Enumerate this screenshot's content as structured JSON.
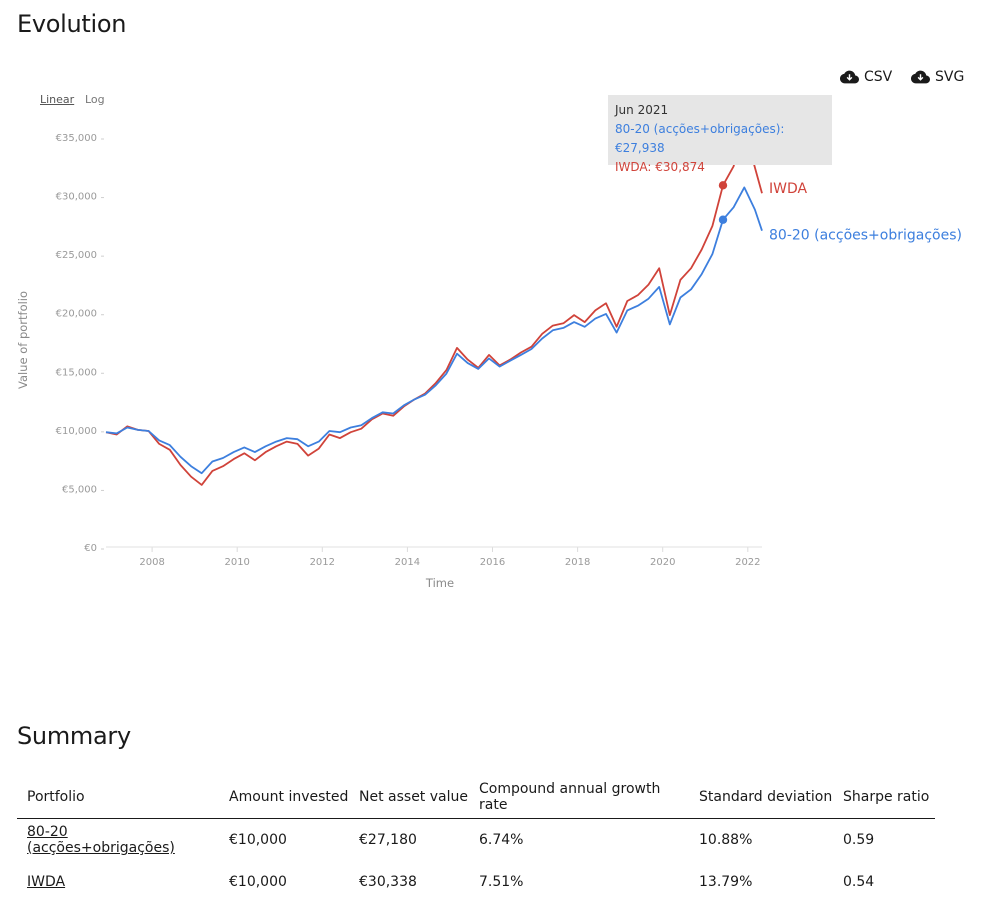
{
  "evolution": {
    "title": "Evolution",
    "downloads": {
      "csv_label": "CSV",
      "svg_label": "SVG"
    },
    "scale": {
      "linear_label": "Linear",
      "log_label": "Log",
      "selected": "Linear"
    }
  },
  "tooltip": {
    "date": "Jun 2021",
    "line1": "80-20 (acções+obrigações): €27,938",
    "line2": "IWDA: €30,874"
  },
  "chart_data": {
    "type": "line",
    "xlabel": "Time",
    "ylabel": "Value of portfolio",
    "x_ticks": [
      "2008",
      "2010",
      "2012",
      "2014",
      "2016",
      "2018",
      "2020",
      "2022"
    ],
    "y_tick_values": [
      0,
      5000,
      10000,
      15000,
      20000,
      25000,
      30000,
      35000
    ],
    "y_ticks": [
      "€0",
      "€5,000",
      "€10,000",
      "€15,000",
      "€20,000",
      "€25,000",
      "€30,000",
      "€35,000"
    ],
    "xlim": [
      "2006-12",
      "2022-05"
    ],
    "ylim": [
      0,
      35000
    ],
    "x": [
      "2006-12",
      "2007-03",
      "2007-06",
      "2007-09",
      "2007-12",
      "2008-03",
      "2008-06",
      "2008-09",
      "2008-12",
      "2009-03",
      "2009-06",
      "2009-09",
      "2009-12",
      "2010-03",
      "2010-06",
      "2010-09",
      "2010-12",
      "2011-03",
      "2011-06",
      "2011-09",
      "2011-12",
      "2012-03",
      "2012-06",
      "2012-09",
      "2012-12",
      "2013-03",
      "2013-06",
      "2013-09",
      "2013-12",
      "2014-03",
      "2014-06",
      "2014-09",
      "2014-12",
      "2015-03",
      "2015-06",
      "2015-09",
      "2015-12",
      "2016-03",
      "2016-06",
      "2016-09",
      "2016-12",
      "2017-03",
      "2017-06",
      "2017-09",
      "2017-12",
      "2018-03",
      "2018-06",
      "2018-09",
      "2018-12",
      "2019-03",
      "2019-06",
      "2019-09",
      "2019-12",
      "2020-03",
      "2020-06",
      "2020-09",
      "2020-12",
      "2021-03",
      "2021-06",
      "2021-09",
      "2021-12",
      "2022-03",
      "2022-05"
    ],
    "series": [
      {
        "name": "IWDA",
        "color": "#d0433a",
        "values": [
          9800,
          9600,
          10300,
          10000,
          9900,
          8800,
          8300,
          7000,
          6000,
          5300,
          6500,
          6900,
          7500,
          8000,
          7400,
          8100,
          8600,
          9000,
          8800,
          7800,
          8400,
          9600,
          9300,
          9800,
          10100,
          10900,
          11400,
          11200,
          12000,
          12600,
          13100,
          14000,
          15100,
          17000,
          16000,
          15300,
          16400,
          15500,
          16000,
          16600,
          17100,
          18200,
          18900,
          19100,
          19800,
          19200,
          20200,
          20800,
          18800,
          21000,
          21500,
          22400,
          23800,
          19800,
          22800,
          23800,
          25400,
          27400,
          30874,
          32500,
          35800,
          32400,
          30200
        ]
      },
      {
        "name": "80-20 (acções+obrigações)",
        "color": "#3d7fde",
        "values": [
          9800,
          9700,
          10200,
          10000,
          9900,
          9100,
          8700,
          7700,
          6900,
          6300,
          7300,
          7600,
          8100,
          8500,
          8100,
          8600,
          9000,
          9300,
          9200,
          8600,
          9000,
          9900,
          9800,
          10200,
          10400,
          11000,
          11500,
          11400,
          12100,
          12600,
          13000,
          13800,
          14800,
          16500,
          15700,
          15200,
          16100,
          15400,
          15900,
          16400,
          16900,
          17800,
          18500,
          18700,
          19200,
          18800,
          19500,
          19900,
          18300,
          20200,
          20600,
          21200,
          22200,
          19000,
          21300,
          22000,
          23300,
          25000,
          27938,
          29000,
          30700,
          28800,
          27000
        ]
      }
    ],
    "hover": {
      "x": "2021-06",
      "values": {
        "IWDA": 30874,
        "80-20 (acções+obrigações)": 27938
      }
    },
    "end_labels": [
      "IWDA",
      "80-20 (acções+obrigações)"
    ]
  },
  "summary": {
    "title": "Summary",
    "columns": [
      "Portfolio",
      "Amount invested",
      "Net asset value",
      "Compound annual growth rate",
      "Standard deviation",
      "Sharpe ratio"
    ],
    "rows": [
      {
        "portfolio": "80-20 (acções+obrigações)",
        "amount": "€10,000",
        "nav": "€27,180",
        "cagr": "6.74%",
        "stdev": "10.88%",
        "sharpe": "0.59"
      },
      {
        "portfolio": "IWDA",
        "amount": "€10,000",
        "nav": "€30,338",
        "cagr": "7.51%",
        "stdev": "13.79%",
        "sharpe": "0.54"
      }
    ]
  }
}
